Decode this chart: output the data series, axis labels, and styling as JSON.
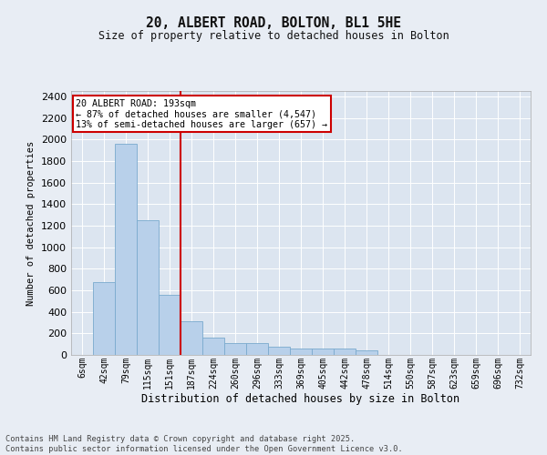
{
  "title_line1": "20, ALBERT ROAD, BOLTON, BL1 5HE",
  "title_line2": "Size of property relative to detached houses in Bolton",
  "xlabel": "Distribution of detached houses by size in Bolton",
  "ylabel": "Number of detached properties",
  "annotation_line1": "20 ALBERT ROAD: 193sqm",
  "annotation_line2": "← 87% of detached houses are smaller (4,547)",
  "annotation_line3": "13% of semi-detached houses are larger (657) →",
  "bar_categories": [
    "6sqm",
    "42sqm",
    "79sqm",
    "115sqm",
    "151sqm",
    "187sqm",
    "224sqm",
    "260sqm",
    "296sqm",
    "333sqm",
    "369sqm",
    "405sqm",
    "442sqm",
    "478sqm",
    "514sqm",
    "550sqm",
    "587sqm",
    "623sqm",
    "659sqm",
    "696sqm",
    "732sqm"
  ],
  "bar_heights": [
    0,
    680,
    1960,
    1250,
    560,
    310,
    160,
    110,
    110,
    80,
    60,
    55,
    55,
    40,
    0,
    0,
    0,
    0,
    0,
    0,
    0
  ],
  "bar_color": "#b8d0ea",
  "bar_edge_color": "#7aaace",
  "vline_color": "#cc0000",
  "vline_position": 4.5,
  "ylim": [
    0,
    2450
  ],
  "yticks": [
    0,
    200,
    400,
    600,
    800,
    1000,
    1200,
    1400,
    1600,
    1800,
    2000,
    2200,
    2400
  ],
  "bg_color": "#e8edf4",
  "plot_bg_color": "#dce5f0",
  "grid_color": "#ffffff",
  "footer_line1": "Contains HM Land Registry data © Crown copyright and database right 2025.",
  "footer_line2": "Contains public sector information licensed under the Open Government Licence v3.0."
}
